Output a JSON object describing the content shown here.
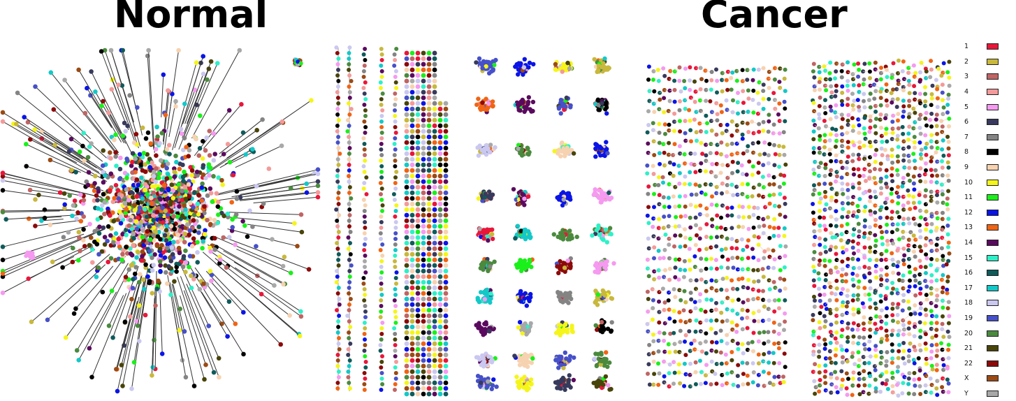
{
  "titles": {
    "normal": "Normal",
    "cancer": "Cancer"
  },
  "legend": [
    {
      "label": "1",
      "color": "#e8173a"
    },
    {
      "label": "2",
      "color": "#c8b83c"
    },
    {
      "label": "3",
      "color": "#c06464"
    },
    {
      "label": "4",
      "color": "#f49a9a"
    },
    {
      "label": "5",
      "color": "#f59af0"
    },
    {
      "label": "6",
      "color": "#373a5c"
    },
    {
      "label": "7",
      "color": "#848484"
    },
    {
      "label": "8",
      "color": "#000000"
    },
    {
      "label": "9",
      "color": "#f7d2b0"
    },
    {
      "label": "10",
      "color": "#f5f51a"
    },
    {
      "label": "11",
      "color": "#1af01a"
    },
    {
      "label": "12",
      "color": "#0a14e6"
    },
    {
      "label": "13",
      "color": "#f06414"
    },
    {
      "label": "14",
      "color": "#5a0a5e"
    },
    {
      "label": "15",
      "color": "#2ef0c8"
    },
    {
      "label": "16",
      "color": "#0f5a5a"
    },
    {
      "label": "17",
      "color": "#14c8c8"
    },
    {
      "label": "18",
      "color": "#cac8f0"
    },
    {
      "label": "19",
      "color": "#4650c8"
    },
    {
      "label": "20",
      "color": "#4a8a3e"
    },
    {
      "label": "21",
      "color": "#48440a"
    },
    {
      "label": "22",
      "color": "#8c0a0a"
    },
    {
      "label": "X",
      "color": "#9a4a14"
    },
    {
      "label": "Y",
      "color": "#a8a8a8"
    }
  ]
}
